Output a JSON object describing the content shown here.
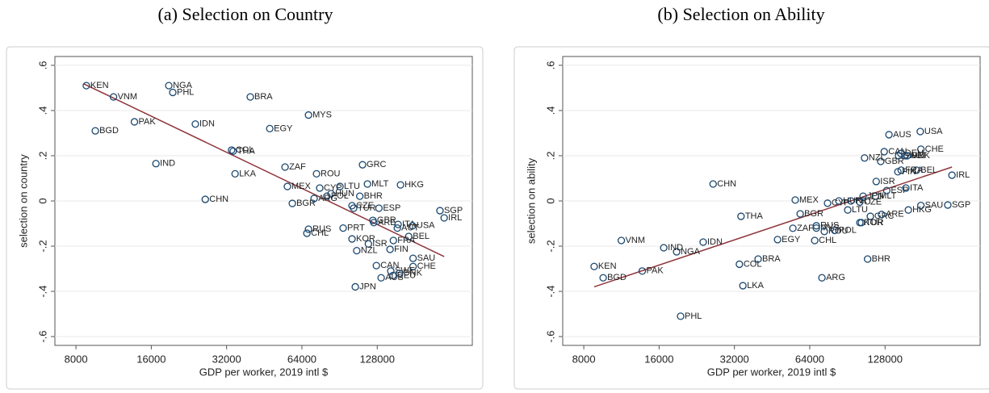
{
  "chart_data": [
    {
      "type": "scatter",
      "title": "(a) Selection on Country",
      "xlabel": "GDP per worker, 2019 intl $",
      "ylabel": "selection on country",
      "xscale": "log",
      "xlim": [
        6590,
        307000
      ],
      "xticks": [
        8000,
        16000,
        32000,
        64000,
        128000
      ],
      "ylim": [
        -0.639,
        0.639
      ],
      "yticks": [
        {
          "value": -0.6,
          "label": "-.6"
        },
        {
          "value": -0.4,
          "label": "-.4"
        },
        {
          "value": -0.2,
          "label": "-.2"
        },
        0,
        {
          "value": 0.2,
          "label": ".2"
        },
        {
          "value": 0.4,
          "label": ".4"
        },
        {
          "value": 0.6,
          "label": ".6"
        }
      ],
      "grid": true,
      "color": "#1a476f",
      "fit_color": "#90353b",
      "point_labels": [
        "KEN",
        "VNM",
        "NGA",
        "PHL",
        "BRA",
        "MYS",
        "PAK",
        "BGD",
        "IDN",
        "EGY",
        "COL",
        "THA",
        "IND",
        "ZAF",
        "LKA",
        "ROU",
        "GRC",
        "CHN",
        "MEX",
        "CYP",
        "LTU",
        "MLT",
        "HKG",
        "HUN",
        "POL",
        "BGR",
        "ARG",
        "BHR",
        "CZE",
        "TUR",
        "ESP",
        "SGP",
        "IRL",
        "GBR",
        "ARE",
        "ITA",
        "USA",
        "AUT",
        "RUS",
        "PRT",
        "CHL",
        "BEL",
        "KOR",
        "ISR",
        "FRA",
        "NZL",
        "FIN",
        "SAU",
        "CAN",
        "CHE",
        "SWE",
        "DEU",
        "AUS",
        "DNK",
        "JPN"
      ],
      "x": [
        8800,
        11300,
        18800,
        19500,
        39800,
        68000,
        13700,
        9560,
        24000,
        47600,
        33500,
        34000,
        16700,
        54800,
        34600,
        73200,
        111800,
        26300,
        56000,
        75400,
        90800,
        117000,
        158600,
        83700,
        80500,
        58600,
        71600,
        109000,
        101500,
        103000,
        130000,
        228000,
        237000,
        123000,
        124000,
        155000,
        177000,
        154000,
        68000,
        93500,
        67000,
        171000,
        101500,
        118000,
        148500,
        106000,
        144000,
        178000,
        127000,
        178000,
        145000,
        148000,
        132700,
        157000,
        104600
      ],
      "values": [
        0.51,
        0.46,
        0.51,
        0.48,
        0.46,
        0.38,
        0.35,
        0.31,
        0.34,
        0.32,
        0.225,
        0.22,
        0.165,
        0.15,
        0.12,
        0.12,
        0.16,
        0.007,
        0.064,
        0.057,
        0.064,
        0.075,
        0.071,
        0.032,
        0.021,
        -0.011,
        0.011,
        0.021,
        -0.021,
        -0.032,
        -0.032,
        -0.043,
        -0.075,
        -0.086,
        -0.096,
        -0.104,
        -0.11,
        -0.12,
        -0.125,
        -0.12,
        -0.143,
        -0.157,
        -0.168,
        -0.19,
        -0.175,
        -0.22,
        -0.214,
        -0.254,
        -0.286,
        -0.29,
        -0.31,
        -0.33,
        -0.34,
        -0.32,
        -0.38
      ],
      "fit_line": {
        "x": [
          8600,
          237000
        ],
        "values": [
          0.518,
          -0.246
        ]
      }
    },
    {
      "type": "scatter",
      "title": "(b) Selection on Ability",
      "xlabel": "GDP per worker, 2019 intl $",
      "ylabel": "selection on ability",
      "xscale": "log",
      "xlim": [
        6590,
        307000
      ],
      "xticks": [
        8000,
        16000,
        32000,
        64000,
        128000
      ],
      "ylim": [
        -0.639,
        0.639
      ],
      "yticks": [
        {
          "value": -0.6,
          "label": "-.6"
        },
        {
          "value": -0.4,
          "label": "-.4"
        },
        {
          "value": -0.2,
          "label": "-.2"
        },
        0,
        {
          "value": 0.2,
          "label": ".2"
        },
        {
          "value": 0.4,
          "label": ".4"
        },
        {
          "value": 0.6,
          "label": ".6"
        }
      ],
      "grid": true,
      "color": "#1a476f",
      "fit_color": "#90353b",
      "point_labels": [
        "KEN",
        "VNM",
        "NGA",
        "PHL",
        "BRA",
        "MYS",
        "PAK",
        "BGD",
        "IDN",
        "EGY",
        "COL",
        "THA",
        "IND",
        "ZAF",
        "LKA",
        "ROU",
        "GRC",
        "CHN",
        "MEX",
        "CYP",
        "LTU",
        "MLT",
        "HKG",
        "HUN",
        "POL",
        "BGR",
        "ARG",
        "BHR",
        "CZE",
        "TUR",
        "ESP",
        "SGP",
        "IRL",
        "GBR",
        "ARE",
        "ITA",
        "USA",
        "AUT",
        "RUS",
        "PRT",
        "CHL",
        "BEL",
        "KOR",
        "ISR",
        "FRA",
        "NZL",
        "FIN",
        "SAU",
        "CAN",
        "CHE",
        "SWE",
        "DEU",
        "AUS",
        "DNK",
        "JPN"
      ],
      "x": [
        8800,
        11300,
        18800,
        19500,
        39800,
        68000,
        13700,
        9560,
        24000,
        47600,
        33500,
        34000,
        16700,
        54800,
        34600,
        73200,
        111800,
        26300,
        56000,
        75400,
        90800,
        117000,
        158600,
        83700,
        80500,
        58600,
        71600,
        109000,
        101500,
        103000,
        130000,
        228000,
        237000,
        123000,
        124000,
        155000,
        177000,
        154000,
        68000,
        93500,
        67000,
        171000,
        101500,
        118000,
        148500,
        106000,
        144000,
        178000,
        127000,
        178000,
        145000,
        148000,
        132700,
        157000,
        104600
      ],
      "values": [
        -0.29,
        -0.175,
        -0.225,
        -0.51,
        -0.257,
        -0.12,
        -0.31,
        -0.34,
        -0.182,
        -0.171,
        -0.28,
        -0.068,
        -0.207,
        -0.121,
        -0.375,
        -0.135,
        -0.068,
        0.075,
        0.004,
        -0.01,
        -0.04,
        0.021,
        -0.04,
        0.0,
        -0.13,
        -0.057,
        -0.34,
        -0.257,
        -0.005,
        -0.096,
        0.046,
        -0.018,
        0.114,
        0.175,
        -0.06,
        0.057,
        0.307,
        0.2,
        -0.11,
        0.0,
        -0.175,
        0.136,
        -0.096,
        0.086,
        0.136,
        0.19,
        0.129,
        -0.02,
        0.218,
        0.229,
        0.2,
        0.21,
        0.293,
        0.2,
        0.021
      ],
      "fit_line": {
        "x": [
          8800,
          237000
        ],
        "values": [
          -0.38,
          0.15
        ]
      }
    }
  ]
}
